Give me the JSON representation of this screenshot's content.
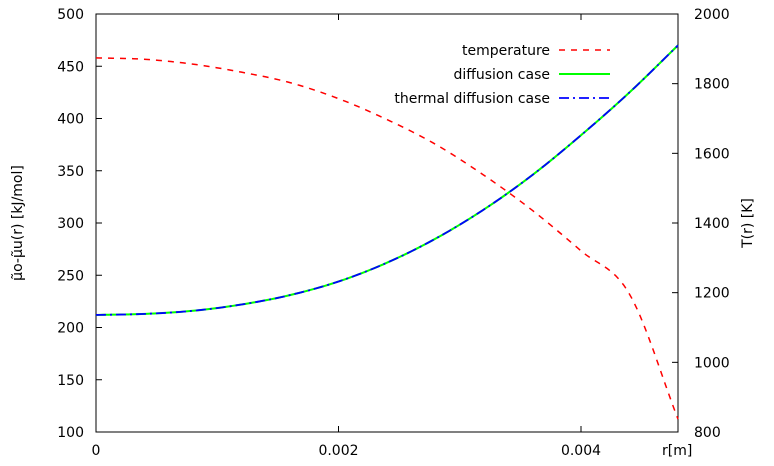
{
  "chart_data": {
    "type": "line",
    "title": "",
    "xlabel": "r[m]",
    "ylabel_left": "μ̃o-μ̃u(r) [kJ/mol]",
    "ylabel_right": "T(r) [K]",
    "xlim": [
      0,
      0.0048
    ],
    "ylim_left": [
      100,
      500
    ],
    "ylim_right": [
      800,
      2000
    ],
    "x_ticks": [
      0,
      0.002,
      0.004
    ],
    "x_tick_labels": [
      "0",
      "0.002",
      "0.004"
    ],
    "y_left_ticks": [
      100,
      150,
      200,
      250,
      300,
      350,
      400,
      450,
      500
    ],
    "y_left_tick_labels": [
      "100",
      "150",
      "200",
      "250",
      "300",
      "350",
      "400",
      "450",
      "500"
    ],
    "y_right_ticks": [
      800,
      1000,
      1200,
      1400,
      1600,
      1800,
      2000
    ],
    "y_right_tick_labels": [
      "800",
      "1000",
      "1200",
      "1400",
      "1600",
      "1800",
      "2000"
    ],
    "grid": false,
    "legend_position": "top-right",
    "series": [
      {
        "name": "temperature",
        "axis": "right",
        "color": "#ff0000",
        "style": "dashed",
        "x": [
          0,
          0.0004,
          0.0008,
          0.0012,
          0.0016,
          0.002,
          0.0024,
          0.0028,
          0.0032,
          0.0036,
          0.004,
          0.0044,
          0.0048
        ],
        "y": [
          1874,
          1870,
          1856,
          1833,
          1803,
          1757,
          1697,
          1626,
          1537,
          1436,
          1320,
          1196,
          837
        ]
      },
      {
        "name": "diffusion case",
        "axis": "left",
        "color": "#00ff00",
        "style": "solid",
        "x": [
          0,
          0.0004,
          0.0008,
          0.0012,
          0.0016,
          0.002,
          0.0024,
          0.0028,
          0.0032,
          0.0036,
          0.004,
          0.0044,
          0.0048
        ],
        "y": [
          212,
          213,
          216,
          222,
          231,
          244,
          262,
          285,
          313,
          346,
          384,
          425,
          470
        ]
      },
      {
        "name": "thermal diffusion case",
        "axis": "left",
        "color": "#0000ff",
        "style": "dashdot",
        "x": [
          0,
          0.0004,
          0.0008,
          0.0012,
          0.0016,
          0.002,
          0.0024,
          0.0028,
          0.0032,
          0.0036,
          0.004,
          0.0044,
          0.0048
        ],
        "y": [
          212,
          213,
          216,
          222,
          231,
          244,
          262,
          285,
          313,
          346,
          384,
          425,
          470
        ]
      }
    ]
  }
}
